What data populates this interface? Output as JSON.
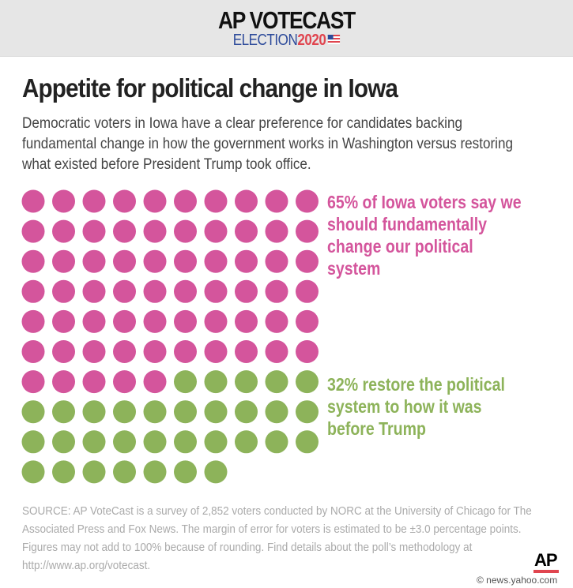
{
  "header": {
    "brand_line1": "AP VOTECAST",
    "brand_election": "ELECTION",
    "brand_year": "2020"
  },
  "title": "Appetite for political change in Iowa",
  "description": "Democratic voters in Iowa have a clear preference for candidates backing fundamental change in how the government works in Washington versus restoring what existed before President Trump took office.",
  "chart_data": {
    "type": "waffle",
    "grid": {
      "columns": 10,
      "rows": 10
    },
    "series": [
      {
        "name": "65% of Iowa voters say we should fundamentally change our political system",
        "value": 65,
        "color": "#d4559c"
      },
      {
        "name": "32% restore the political system to how it was before Trump",
        "value": 32,
        "color": "#8db35a"
      }
    ]
  },
  "source": "SOURCE: AP VoteCast is a survey of 2,852 voters conducted by NORC at the University of Chicago for The Associated Press and Fox News. The margin of error for voters is estimated to be ±3.0 percentage points. Figures may not add to 100% because of rounding. Find details about the poll’s methodology at http://www.ap.org/votecast.",
  "logo": "AP",
  "credit": "© news.yahoo.com"
}
